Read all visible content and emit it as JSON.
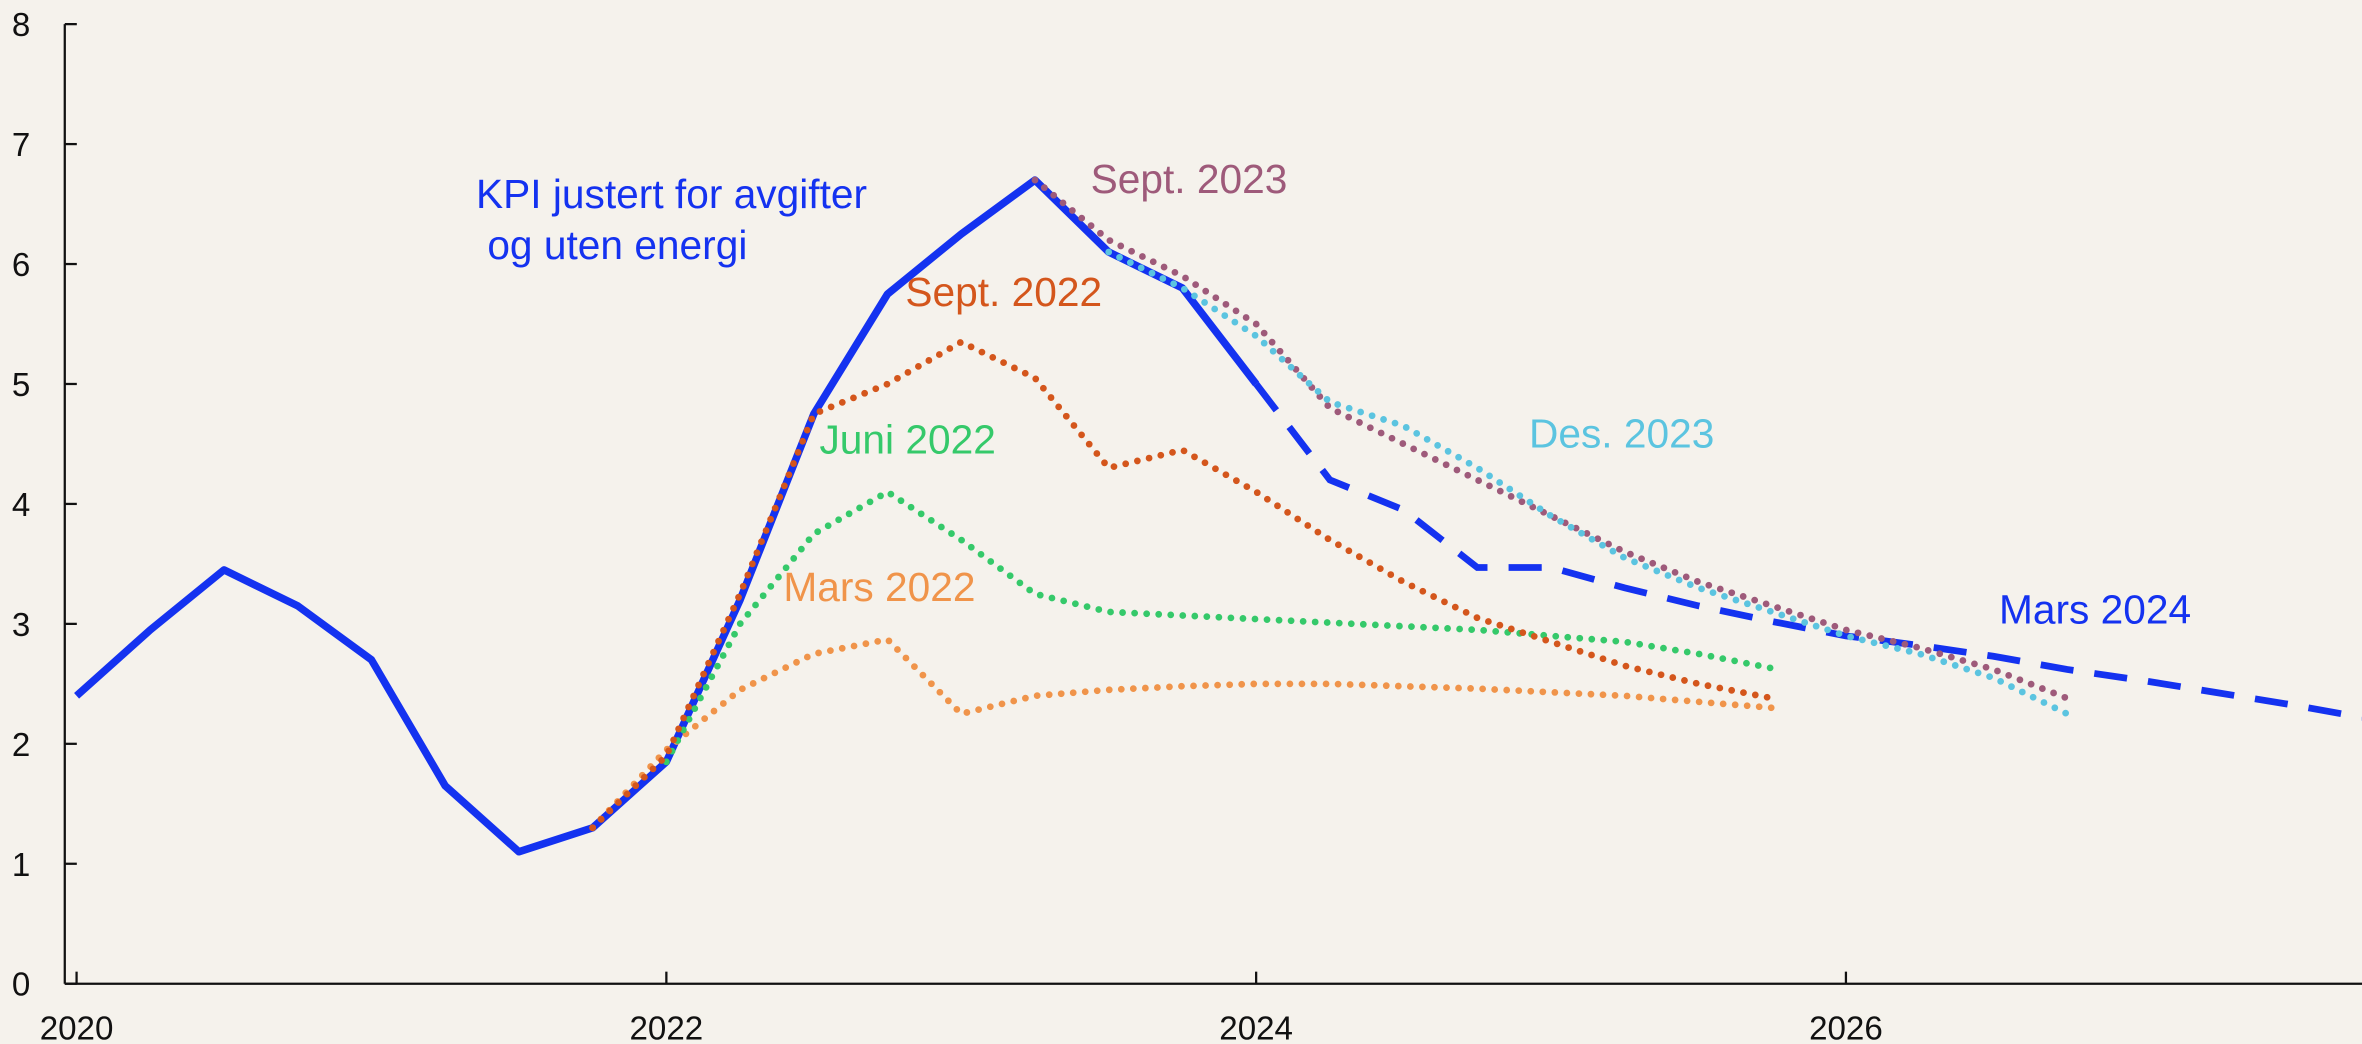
{
  "chart_data": {
    "type": "line",
    "xlim": [
      2019.96,
      2027.75
    ],
    "xticks": [
      2020,
      2022,
      2024,
      2026
    ],
    "ylim": [
      0,
      8
    ],
    "yticks": [
      0,
      1,
      2,
      3,
      4,
      5,
      6,
      7,
      8
    ],
    "series": [
      {
        "name": "KPI justert for avgifter\n og uten energi",
        "color": "#1432f0",
        "line_style": "solid",
        "x": [
          2020.0,
          2020.25,
          2020.5,
          2020.75,
          2021.0,
          2021.25,
          2021.5,
          2021.75,
          2022.0,
          2022.25,
          2022.5,
          2022.75,
          2023.0,
          2023.25,
          2023.5,
          2023.75,
          2024.0
        ],
        "values": [
          2.4,
          2.95,
          3.45,
          3.15,
          2.7,
          1.65,
          1.1,
          1.3,
          1.85,
          3.2,
          4.75,
          5.75,
          6.25,
          6.7,
          6.1,
          5.8,
          5.0
        ]
      },
      {
        "name": "Mars 2024",
        "color": "#1432f0",
        "line_style": "dashed",
        "x": [
          2024.0,
          2024.25,
          2024.5,
          2024.75,
          2025.0,
          2025.25,
          2025.5,
          2025.75,
          2026.0,
          2026.25,
          2026.5,
          2026.75,
          2027.0,
          2027.25,
          2027.5,
          2027.75
        ],
        "values": [
          5.0,
          4.2,
          3.95,
          3.47,
          3.47,
          3.3,
          3.15,
          3.02,
          2.9,
          2.82,
          2.73,
          2.62,
          2.53,
          2.43,
          2.33,
          2.22
        ]
      },
      {
        "name": "Mars 2022",
        "color": "#f0944a",
        "line_style": "dotted",
        "x": [
          2021.75,
          2022.0,
          2022.25,
          2022.5,
          2022.75,
          2023.0,
          2023.25,
          2023.5,
          2023.75,
          2024.0,
          2024.25,
          2024.5,
          2024.75,
          2025.0,
          2025.25,
          2025.5,
          2025.75
        ],
        "values": [
          1.3,
          1.95,
          2.45,
          2.75,
          2.87,
          2.25,
          2.4,
          2.45,
          2.48,
          2.5,
          2.5,
          2.48,
          2.46,
          2.43,
          2.4,
          2.35,
          2.3
        ]
      },
      {
        "name": "Juni 2022",
        "color": "#35c96a",
        "line_style": "dotted",
        "x": [
          2022.0,
          2022.25,
          2022.5,
          2022.75,
          2023.0,
          2023.25,
          2023.5,
          2023.75,
          2024.0,
          2024.25,
          2024.5,
          2024.75,
          2025.0,
          2025.25,
          2025.5,
          2025.75
        ],
        "values": [
          1.85,
          3.0,
          3.75,
          4.1,
          3.7,
          3.25,
          3.1,
          3.07,
          3.04,
          3.01,
          2.98,
          2.95,
          2.9,
          2.85,
          2.75,
          2.63
        ]
      },
      {
        "name": "Sept. 2022",
        "color": "#d4561c",
        "line_style": "dotted",
        "x": [
          2021.75,
          2022.0,
          2022.25,
          2022.5,
          2022.75,
          2023.0,
          2023.25,
          2023.5,
          2023.75,
          2024.0,
          2024.25,
          2024.5,
          2024.75,
          2025.0,
          2025.25,
          2025.5,
          2025.75
        ],
        "values": [
          1.3,
          1.9,
          3.25,
          4.75,
          5.0,
          5.35,
          5.05,
          4.3,
          4.45,
          4.1,
          3.7,
          3.35,
          3.05,
          2.85,
          2.65,
          2.5,
          2.38
        ]
      },
      {
        "name": "Sept. 2023",
        "color": "#9e5a7a",
        "line_style": "dotted",
        "x": [
          2023.25,
          2023.5,
          2023.75,
          2024.0,
          2024.25,
          2024.5,
          2024.75,
          2025.0,
          2025.25,
          2025.5,
          2025.75,
          2026.0,
          2026.25,
          2026.5,
          2026.75
        ],
        "values": [
          6.7,
          6.2,
          5.9,
          5.5,
          4.8,
          4.5,
          4.2,
          3.9,
          3.6,
          3.35,
          3.15,
          2.95,
          2.8,
          2.62,
          2.38
        ]
      },
      {
        "name": "Des. 2023",
        "color": "#5bc4e0",
        "line_style": "dotted",
        "x": [
          2023.5,
          2023.75,
          2024.0,
          2024.25,
          2024.5,
          2024.75,
          2025.0,
          2025.25,
          2025.5,
          2025.75,
          2026.0,
          2026.25,
          2026.5,
          2026.75
        ],
        "values": [
          6.1,
          5.8,
          5.4,
          4.85,
          4.65,
          4.3,
          3.9,
          3.55,
          3.3,
          3.1,
          2.9,
          2.75,
          2.55,
          2.25
        ]
      }
    ]
  }
}
